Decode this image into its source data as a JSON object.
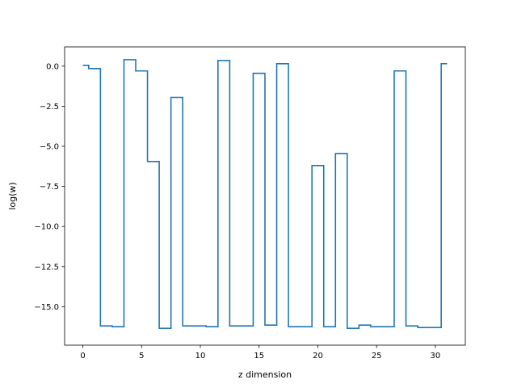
{
  "chart_data": {
    "type": "line",
    "drawstyle": "steps-mid",
    "xlabel": "z dimension",
    "ylabel": "log(w)",
    "xlim": [
      -1.55,
      32.55
    ],
    "ylim": [
      -17.4,
      1.2
    ],
    "xticks": [
      0,
      5,
      10,
      15,
      20,
      25,
      30
    ],
    "xtick_labels": [
      "0",
      "5",
      "10",
      "15",
      "20",
      "25",
      "30"
    ],
    "yticks": [
      0.0,
      -2.5,
      -5.0,
      -7.5,
      -10.0,
      -12.5,
      -15.0
    ],
    "ytick_labels": [
      "0.0",
      "−2.5",
      "−5.0",
      "−7.5",
      "−10.0",
      "−12.5",
      "−15.0"
    ],
    "grid": false,
    "series": [
      {
        "color": "#1f77b4",
        "x": [
          0,
          1,
          2,
          3,
          4,
          5,
          6,
          7,
          8,
          9,
          10,
          11,
          12,
          13,
          14,
          15,
          16,
          17,
          18,
          19,
          20,
          21,
          22,
          23,
          24,
          25,
          26,
          27,
          28,
          29,
          30,
          31
        ],
        "values": [
          0.05,
          -0.15,
          -16.2,
          -16.25,
          0.4,
          -0.3,
          -5.95,
          -16.35,
          -1.95,
          -16.2,
          -16.2,
          -16.25,
          0.35,
          -16.2,
          -16.2,
          -0.45,
          -16.15,
          0.15,
          -16.25,
          -16.25,
          -6.2,
          -16.25,
          -5.45,
          -16.35,
          -16.15,
          -16.25,
          -16.25,
          -0.3,
          -16.2,
          -16.3,
          -16.3,
          0.15
        ]
      }
    ]
  }
}
